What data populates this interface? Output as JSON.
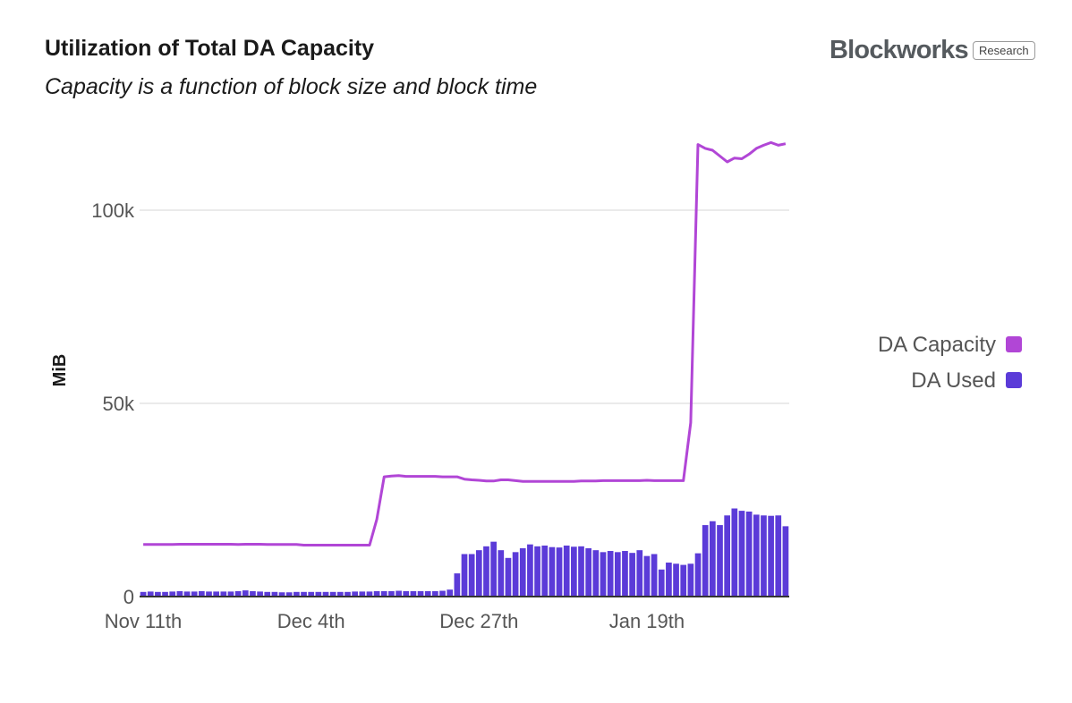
{
  "header": {
    "title": "Utilization of Total DA Capacity",
    "subtitle": "Capacity is a function of block size and block time",
    "brand": "Blockworks",
    "badge": "Research"
  },
  "colors": {
    "capacity": "#b146d6",
    "used": "#5b3bd8",
    "grid": "#e3e3e3",
    "axis": "#333333"
  },
  "chart_data": {
    "type": "bar",
    "title": "Utilization of Total DA Capacity",
    "subtitle": "Capacity is a function of block size and block time",
    "ylabel": "MiB",
    "xlabel": "",
    "ylim": [
      0,
      125000
    ],
    "yticks": [
      0,
      50000,
      100000
    ],
    "ytick_labels": [
      "0",
      "50k",
      "100k"
    ],
    "grid": true,
    "legend_position": "right",
    "x_start": "Nov 11th",
    "x_tick_labels": [
      {
        "label": "Nov 11th",
        "index": 0
      },
      {
        "label": "Dec 4th",
        "index": 23
      },
      {
        "label": "Dec 27th",
        "index": 46
      },
      {
        "label": "Jan 19th",
        "index": 69
      }
    ],
    "series": [
      {
        "name": "DA Capacity",
        "type": "line",
        "color": "#b146d6",
        "values": [
          13500,
          13500,
          13500,
          13500,
          13500,
          13550,
          13550,
          13550,
          13550,
          13550,
          13550,
          13550,
          13550,
          13500,
          13550,
          13550,
          13550,
          13500,
          13500,
          13500,
          13500,
          13500,
          13300,
          13300,
          13300,
          13300,
          13300,
          13300,
          13300,
          13300,
          13300,
          13300,
          20000,
          31000,
          31200,
          31300,
          31100,
          31100,
          31100,
          31100,
          31100,
          31000,
          31000,
          31000,
          30400,
          30200,
          30100,
          29900,
          29900,
          30200,
          30200,
          30000,
          29800,
          29800,
          29800,
          29800,
          29800,
          29800,
          29800,
          29800,
          29900,
          29900,
          29900,
          30000,
          30000,
          30000,
          30000,
          30000,
          30000,
          30100,
          30000,
          30000,
          30000,
          30000,
          30000,
          45000,
          117000,
          116000,
          115500,
          114000,
          112500,
          113500,
          113300,
          114500,
          116000,
          116800,
          117500,
          116800,
          117200
        ]
      },
      {
        "name": "DA Used",
        "type": "bar",
        "color": "#5b3bd8",
        "values": [
          1200,
          1300,
          1200,
          1200,
          1300,
          1400,
          1300,
          1300,
          1400,
          1300,
          1300,
          1300,
          1300,
          1400,
          1600,
          1400,
          1300,
          1200,
          1200,
          1100,
          1100,
          1200,
          1200,
          1200,
          1200,
          1200,
          1200,
          1200,
          1200,
          1300,
          1300,
          1300,
          1400,
          1400,
          1400,
          1500,
          1400,
          1400,
          1400,
          1400,
          1400,
          1500,
          1800,
          6000,
          11000,
          11000,
          12000,
          13000,
          14200,
          12000,
          10000,
          11500,
          12500,
          13500,
          13000,
          13200,
          12800,
          12700,
          13200,
          12900,
          13000,
          12500,
          12000,
          11500,
          11800,
          11500,
          11800,
          11300,
          12000,
          10500,
          11000,
          7000,
          8800,
          8500,
          8200,
          8500,
          11200,
          18500,
          19500,
          18500,
          21000,
          22800,
          22200,
          22000,
          21200,
          21000,
          20900,
          21000,
          18200
        ]
      }
    ]
  }
}
